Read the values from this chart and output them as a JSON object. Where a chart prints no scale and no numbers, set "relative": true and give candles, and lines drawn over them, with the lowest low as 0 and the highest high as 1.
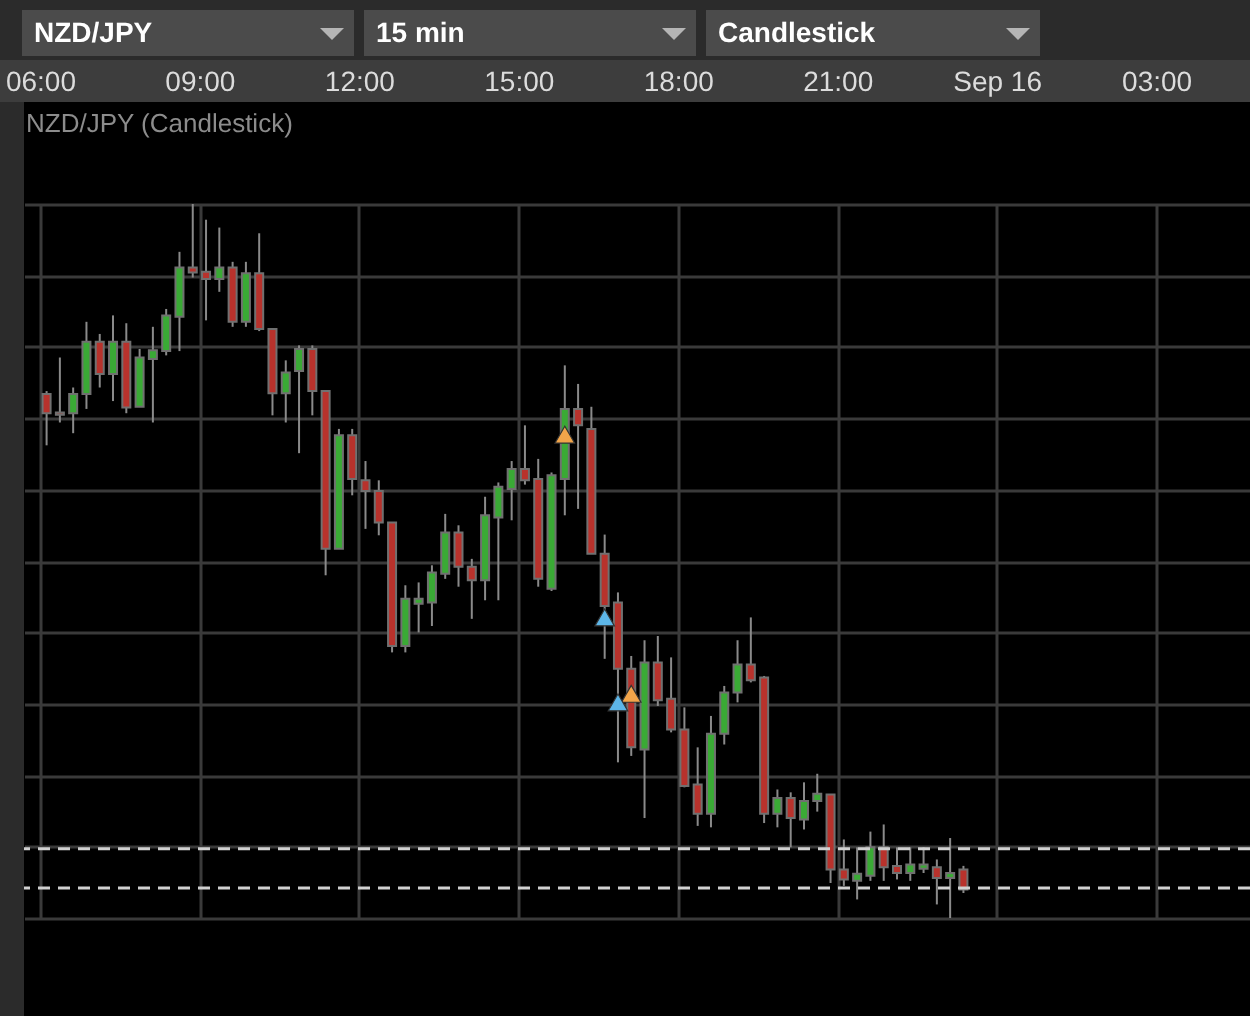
{
  "chart_data": {
    "type": "candlestick",
    "title": "NZD/JPY (Candlestick)",
    "annotations": [
      "NZD/JPY",
      "15 min",
      "Candlestick"
    ],
    "relative": true,
    "grid": true,
    "xlim": [
      "--09-15T05:42",
      "--09-16T04:46"
    ],
    "xticks": [
      {
        "value": "--09-15T06:00",
        "label": "06:00"
      },
      {
        "value": "--09-15T09:00",
        "label": "09:00"
      },
      {
        "value": "--09-15T12:00",
        "label": "12:00"
      },
      {
        "value": "--09-15T15:00",
        "label": "15:00"
      },
      {
        "value": "--09-15T18:00",
        "label": "18:00"
      },
      {
        "value": "--09-15T21:00",
        "label": "21:00"
      },
      {
        "value": "--09-16T00:00",
        "label": "Sep 16"
      },
      {
        "value": "--09-16T03:00",
        "label": "03:00"
      }
    ],
    "x": [
      "--09-15T06:07:30",
      "--09-15T06:22:30",
      "--09-15T06:37:30",
      "--09-15T06:52:30",
      "--09-15T07:07:30",
      "--09-15T07:22:30",
      "--09-15T07:37:30",
      "--09-15T07:52:30",
      "--09-15T08:07:30",
      "--09-15T08:22:30",
      "--09-15T08:37:30",
      "--09-15T08:52:30",
      "--09-15T09:07:30",
      "--09-15T09:22:30",
      "--09-15T09:37:30",
      "--09-15T09:52:30",
      "--09-15T10:07:30",
      "--09-15T10:22:30",
      "--09-15T10:37:30",
      "--09-15T10:52:30",
      "--09-15T11:07:30",
      "--09-15T11:22:30",
      "--09-15T11:37:30",
      "--09-15T11:52:30",
      "--09-15T12:07:30",
      "--09-15T12:22:30",
      "--09-15T12:37:30",
      "--09-15T12:52:30",
      "--09-15T13:07:30",
      "--09-15T13:22:30",
      "--09-15T13:37:30",
      "--09-15T13:52:30",
      "--09-15T14:07:30",
      "--09-15T14:22:30",
      "--09-15T14:37:30",
      "--09-15T14:52:30",
      "--09-15T15:07:30",
      "--09-15T15:22:30",
      "--09-15T15:37:30",
      "--09-15T15:52:30",
      "--09-15T16:07:30",
      "--09-15T16:22:30",
      "--09-15T16:37:30",
      "--09-15T16:52:30",
      "--09-15T17:07:30",
      "--09-15T17:22:30",
      "--09-15T17:37:30",
      "--09-15T17:52:30",
      "--09-15T18:07:30",
      "--09-15T18:22:30",
      "--09-15T18:37:30",
      "--09-15T18:52:30",
      "--09-15T19:07:30",
      "--09-15T19:22:30",
      "--09-15T19:37:30",
      "--09-15T19:52:30",
      "--09-15T20:07:30",
      "--09-15T20:22:30",
      "--09-15T20:37:30",
      "--09-15T20:52:30",
      "--09-15T21:07:30",
      "--09-15T21:22:30",
      "--09-15T21:37:30",
      "--09-15T21:52:30",
      "--09-15T22:07:30",
      "--09-15T22:22:30",
      "--09-15T22:37:30",
      "--09-15T22:52:30",
      "--09-15T23:07:30",
      "--09-15T23:22:30"
    ],
    "ohlc": [
      [
        0.734,
        0.738,
        0.662,
        0.707
      ],
      [
        0.708,
        0.785,
        0.694,
        0.705
      ],
      [
        0.707,
        0.743,
        0.679,
        0.734
      ],
      [
        0.734,
        0.835,
        0.713,
        0.807
      ],
      [
        0.807,
        0.818,
        0.743,
        0.762
      ],
      [
        0.762,
        0.844,
        0.724,
        0.807
      ],
      [
        0.807,
        0.833,
        0.707,
        0.715
      ],
      [
        0.716,
        0.797,
        0.716,
        0.785
      ],
      [
        0.783,
        0.828,
        0.694,
        0.795
      ],
      [
        0.794,
        0.853,
        0.788,
        0.844
      ],
      [
        0.842,
        0.933,
        0.794,
        0.911
      ],
      [
        0.911,
        1,
        0.897,
        0.904
      ],
      [
        0.905,
        0.978,
        0.837,
        0.895
      ],
      [
        0.895,
        0.967,
        0.877,
        0.911
      ],
      [
        0.911,
        0.919,
        0.828,
        0.835
      ],
      [
        0.835,
        0.919,
        0.828,
        0.903
      ],
      [
        0.903,
        0.959,
        0.822,
        0.825
      ],
      [
        0.825,
        0.825,
        0.704,
        0.735
      ],
      [
        0.735,
        0.781,
        0.694,
        0.764
      ],
      [
        0.766,
        0.802,
        0.651,
        0.797
      ],
      [
        0.797,
        0.802,
        0.704,
        0.738
      ],
      [
        0.738,
        0.738,
        0.48,
        0.517
      ],
      [
        0.517,
        0.685,
        0.517,
        0.676
      ],
      [
        0.676,
        0.685,
        0.592,
        0.615
      ],
      [
        0.613,
        0.64,
        0.545,
        0.598
      ],
      [
        0.598,
        0.613,
        0.536,
        0.554
      ],
      [
        0.554,
        0.554,
        0.372,
        0.381
      ],
      [
        0.381,
        0.466,
        0.372,
        0.447
      ],
      [
        0.44,
        0.47,
        0.4,
        0.447
      ],
      [
        0.442,
        0.494,
        0.409,
        0.484
      ],
      [
        0.482,
        0.566,
        0.475,
        0.54
      ],
      [
        0.54,
        0.55,
        0.464,
        0.492
      ],
      [
        0.492,
        0.503,
        0.419,
        0.473
      ],
      [
        0.473,
        0.59,
        0.445,
        0.564
      ],
      [
        0.561,
        0.61,
        0.445,
        0.604
      ],
      [
        0.601,
        0.64,
        0.557,
        0.629
      ],
      [
        0.629,
        0.69,
        0.607,
        0.613
      ],
      [
        0.615,
        0.643,
        0.464,
        0.475
      ],
      [
        0.461,
        0.624,
        0.458,
        0.62
      ],
      [
        0.615,
        0.774,
        0.564,
        0.713
      ],
      [
        0.713,
        0.748,
        0.573,
        0.69
      ],
      [
        0.685,
        0.716,
        0.51,
        0.51
      ],
      [
        0.51,
        0.537,
        0.363,
        0.437
      ],
      [
        0.442,
        0.456,
        0.218,
        0.349
      ],
      [
        0.349,
        0.367,
        0.227,
        0.239
      ],
      [
        0.236,
        0.389,
        0.14,
        0.358
      ],
      [
        0.358,
        0.395,
        0.297,
        0.305
      ],
      [
        0.307,
        0.365,
        0.26,
        0.264
      ],
      [
        0.264,
        0.295,
        0.183,
        0.185
      ],
      [
        0.187,
        0.239,
        0.129,
        0.146
      ],
      [
        0.146,
        0.283,
        0.127,
        0.258
      ],
      [
        0.258,
        0.325,
        0.243,
        0.316
      ],
      [
        0.316,
        0.389,
        0.302,
        0.355
      ],
      [
        0.355,
        0.421,
        0.33,
        0.333
      ],
      [
        0.337,
        0.339,
        0.133,
        0.146
      ],
      [
        0.146,
        0.18,
        0.127,
        0.168
      ],
      [
        0.168,
        0.176,
        0.099,
        0.14
      ],
      [
        0.138,
        0.19,
        0.124,
        0.164
      ],
      [
        0.164,
        0.202,
        0.149,
        0.174
      ],
      [
        0.173,
        0.173,
        0.049,
        0.068
      ],
      [
        0.068,
        0.11,
        0.045,
        0.054
      ],
      [
        0.052,
        0.099,
        0.026,
        0.062
      ],
      [
        0.059,
        0.121,
        0.052,
        0.099
      ],
      [
        0.099,
        0.131,
        0.052,
        0.071
      ],
      [
        0.073,
        0.099,
        0.054,
        0.063
      ],
      [
        0.063,
        0.099,
        0.052,
        0.075
      ],
      [
        0.069,
        0.099,
        0.063,
        0.075
      ],
      [
        0.071,
        0.082,
        0.019,
        0.056
      ],
      [
        0.056,
        0.112,
        0,
        0.063
      ],
      [
        0.068,
        0.073,
        0.035,
        0.04
      ]
    ],
    "colors": [
      "#b8322c",
      "#b8322c",
      "#3aaa35",
      "#3aaa35",
      "#b8322c",
      "#3aaa35",
      "#b8322c",
      "#3aaa35",
      "#3aaa35",
      "#3aaa35",
      "#3aaa35",
      "#b8322c",
      "#b8322c",
      "#3aaa35",
      "#b8322c",
      "#3aaa35",
      "#b8322c",
      "#b8322c",
      "#3aaa35",
      "#3aaa35",
      "#b8322c",
      "#b8322c",
      "#3aaa35",
      "#b8322c",
      "#b8322c",
      "#b8322c",
      "#b8322c",
      "#3aaa35",
      "#3aaa35",
      "#3aaa35",
      "#3aaa35",
      "#b8322c",
      "#b8322c",
      "#3aaa35",
      "#3aaa35",
      "#3aaa35",
      "#b8322c",
      "#b8322c",
      "#3aaa35",
      "#3aaa35",
      "#b8322c",
      "#b8322c",
      "#b8322c",
      "#b8322c",
      "#b8322c",
      "#3aaa35",
      "#b8322c",
      "#b8322c",
      "#b8322c",
      "#b8322c",
      "#3aaa35",
      "#3aaa35",
      "#3aaa35",
      "#b8322c",
      "#b8322c",
      "#3aaa35",
      "#b8322c",
      "#3aaa35",
      "#3aaa35",
      "#b8322c",
      "#b8322c",
      "#3aaa35",
      "#3aaa35",
      "#b8322c",
      "#b8322c",
      "#3aaa35",
      "#3aaa35",
      "#b8322c",
      "#3aaa35",
      "#b8322c"
    ],
    "ref_lines": [
      {
        "axis": "y",
        "value": 0.097,
        "color": "#d0d0d0",
        "line_style": "dashed"
      },
      {
        "axis": "y",
        "value": 0.042,
        "color": "#d0d0d0",
        "line_style": "dashed"
      }
    ],
    "series": [
      {
        "type": "scatter",
        "color": "#f2a54a",
        "marker": "triangle",
        "x": [
          "--09-15T15:52:30",
          "--09-15T17:07:30"
        ],
        "values": [
          0.677,
          0.314
        ]
      },
      {
        "type": "scatter",
        "color": "#5db6e8",
        "marker": "triangle",
        "x": [
          "--09-15T16:37:30",
          "--09-15T16:52:30"
        ],
        "values": [
          0.421,
          0.302
        ]
      }
    ]
  }
}
